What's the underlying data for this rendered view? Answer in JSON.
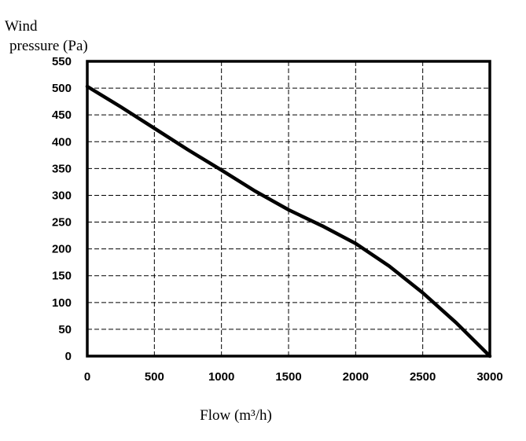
{
  "chart_data": {
    "type": "line",
    "title": "",
    "ylabel_line1": "Wind",
    "ylabel_line2": "pressure (Pa)",
    "xlabel": "Flow (m³/h)",
    "xlim": [
      0,
      3000
    ],
    "ylim": [
      0,
      550
    ],
    "x_ticks": [
      "0",
      "500",
      "1000",
      "1500",
      "2000",
      "2500",
      "3000"
    ],
    "y_ticks": [
      "0",
      "50",
      "100",
      "150",
      "200",
      "250",
      "300",
      "350",
      "400",
      "450",
      "500",
      "550"
    ],
    "x_tick_values": [
      0,
      500,
      1000,
      1500,
      2000,
      2500,
      3000
    ],
    "y_tick_values": [
      0,
      50,
      100,
      150,
      200,
      250,
      300,
      350,
      400,
      450,
      500,
      550
    ],
    "grid": true,
    "grid_style": "dashed",
    "series": [
      {
        "x": [
          0,
          250,
          500,
          750,
          1000,
          1250,
          1500,
          1750,
          2000,
          2250,
          2500,
          2750,
          3000
        ],
        "y": [
          503,
          465,
          425,
          385,
          347,
          308,
          273,
          243,
          210,
          168,
          118,
          62,
          0
        ]
      }
    ],
    "line_color": "#000000"
  }
}
